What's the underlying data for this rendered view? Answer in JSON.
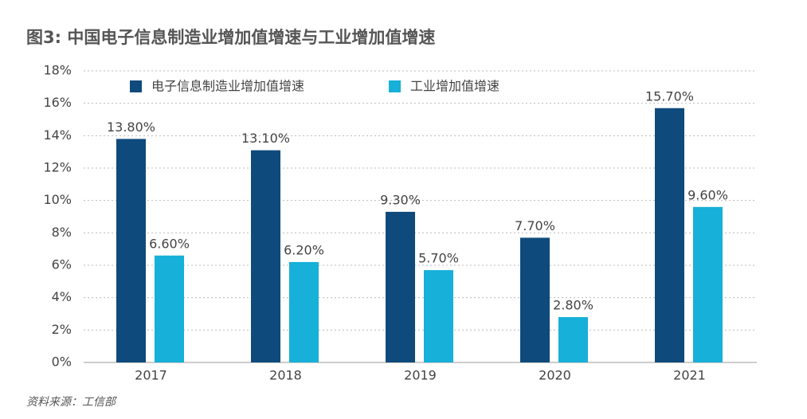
{
  "chart_data": {
    "type": "bar",
    "title": "图3: 中国电子信息制造业增加值增速与工业增加值增速",
    "source": "资料来源：工信部",
    "categories": [
      "2017",
      "2018",
      "2019",
      "2020",
      "2021"
    ],
    "series": [
      {
        "name": "电子信息制造业增加值增速",
        "color": "#0f4a7c",
        "values": [
          13.8,
          13.1,
          9.3,
          7.7,
          15.7
        ],
        "value_labels": [
          "13.80%",
          "13.10%",
          "9.30%",
          "7.70%",
          "15.70%"
        ]
      },
      {
        "name": "工业增加值增速",
        "color": "#16b0d8",
        "values": [
          6.6,
          6.2,
          5.7,
          2.8,
          9.6
        ],
        "value_labels": [
          "6.60%",
          "6.20%",
          "5.70%",
          "2.80%",
          "9.60%"
        ]
      }
    ],
    "ylim": [
      0,
      18
    ],
    "yticks": [
      {
        "value": 0,
        "label": "0%"
      },
      {
        "value": 2,
        "label": "2%"
      },
      {
        "value": 4,
        "label": "4%"
      },
      {
        "value": 6,
        "label": "6%"
      },
      {
        "value": 8,
        "label": "8%"
      },
      {
        "value": 10,
        "label": "10%"
      },
      {
        "value": 12,
        "label": "12%"
      },
      {
        "value": 14,
        "label": "14%"
      },
      {
        "value": 16,
        "label": "16%"
      },
      {
        "value": 18,
        "label": "18%"
      }
    ],
    "grid": true
  }
}
